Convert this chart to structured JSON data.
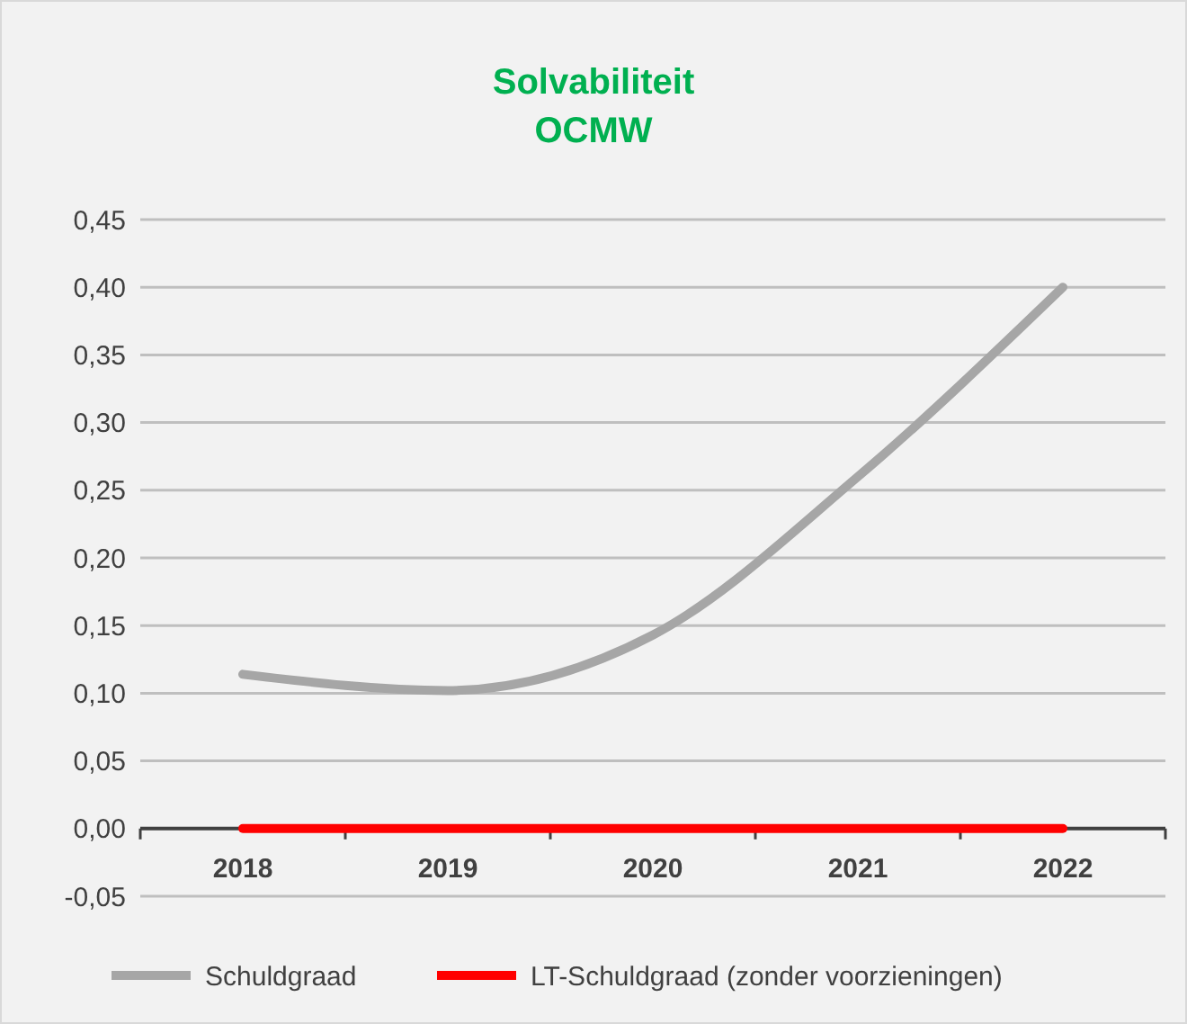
{
  "chart_data": {
    "type": "line",
    "title": "Solvabiliteit\nOCMW",
    "categories": [
      "2018",
      "2019",
      "2020",
      "2021",
      "2022"
    ],
    "series": [
      {
        "name": "Schuldgraad",
        "color": "#a6a6a6",
        "values": [
          0.114,
          0.102,
          0.143,
          0.26,
          0.4
        ]
      },
      {
        "name": "LT-Schuldgraad (zonder voorzieningen)",
        "color": "#ff0000",
        "values": [
          0,
          0,
          0,
          0,
          0
        ]
      }
    ],
    "ylim": [
      -0.05,
      0.45
    ],
    "yticks": [
      {
        "value": -0.05,
        "label": "-0,05"
      },
      {
        "value": 0,
        "label": "0,00"
      },
      {
        "value": 0.05,
        "label": "0,05"
      },
      {
        "value": 0.1,
        "label": "0,10"
      },
      {
        "value": 0.15,
        "label": "0,15"
      },
      {
        "value": 0.2,
        "label": "0,20"
      },
      {
        "value": 0.25,
        "label": "0,25"
      },
      {
        "value": 0.3,
        "label": "0,30"
      },
      {
        "value": 0.35,
        "label": "0,35"
      },
      {
        "value": 0.4,
        "label": "0,40"
      },
      {
        "value": 0.45,
        "label": "0,45"
      }
    ],
    "grid": "y",
    "legend": "bottom",
    "marker": "none",
    "line_style": "solid"
  }
}
